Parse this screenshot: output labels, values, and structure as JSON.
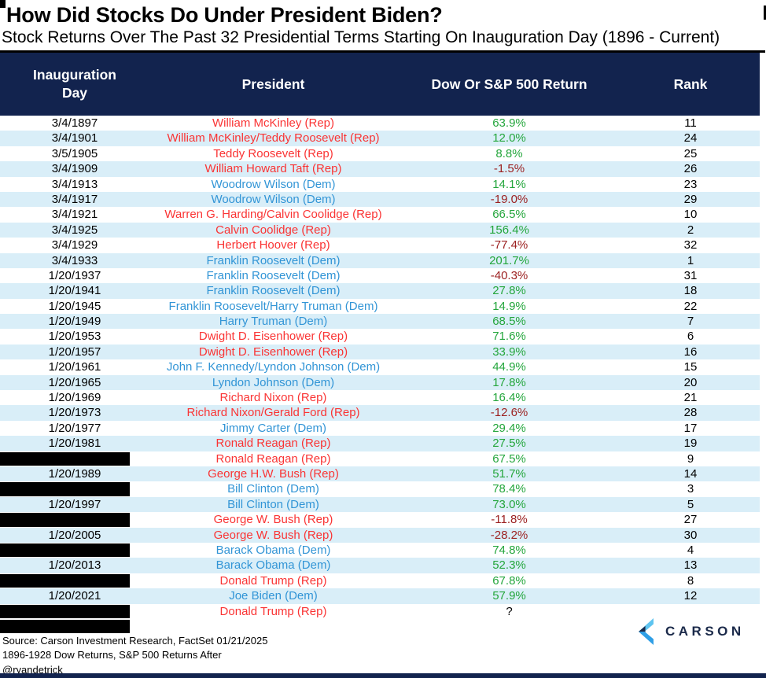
{
  "title": "How Did Stocks Do Under President Biden?",
  "subtitle": "Stock Returns Over The Past 32 Presidential Terms Starting On Inauguration Day (1896 - Current)",
  "colors": {
    "header_bg": "#12234e",
    "row_alt": "#d9eef8",
    "rep_red": "#fa3434",
    "dem_blue": "#3295d6",
    "positive_green": "#24a63c",
    "negative_red": "#9c2121",
    "logo_navy": "#1b2a4a",
    "logo_light_blue": "#5ec4f0",
    "logo_mid_blue": "#2f9fe6"
  },
  "chart_data": {
    "type": "table",
    "title": "How Did Stocks Do Under President Biden?",
    "subtitle": "Stock Returns Over The Past 32 Presidential Terms Starting On Inauguration Day (1896 - Current)",
    "columns": [
      "Inauguration\nDay",
      "President",
      "Dow Or S&P 500 Return",
      "Rank"
    ],
    "rows": [
      {
        "date": "3/4/1897",
        "redacted": false,
        "president": "William McKinley (Rep)",
        "party": "Rep",
        "return": "63.9%",
        "rank": "11"
      },
      {
        "date": "3/4/1901",
        "redacted": false,
        "president": "William McKinley/Teddy Roosevelt (Rep)",
        "party": "Rep",
        "return": "12.0%",
        "rank": "24"
      },
      {
        "date": "3/5/1905",
        "redacted": false,
        "president": "Teddy Roosevelt (Rep)",
        "party": "Rep",
        "return": "8.8%",
        "rank": "25"
      },
      {
        "date": "3/4/1909",
        "redacted": false,
        "president": "William Howard Taft (Rep)",
        "party": "Rep",
        "return": "-1.5%",
        "rank": "26"
      },
      {
        "date": "3/4/1913",
        "redacted": false,
        "president": "Woodrow Wilson (Dem)",
        "party": "Dem",
        "return": "14.1%",
        "rank": "23"
      },
      {
        "date": "3/4/1917",
        "redacted": false,
        "president": "Woodrow Wilson (Dem)",
        "party": "Dem",
        "return": "-19.0%",
        "rank": "29"
      },
      {
        "date": "3/4/1921",
        "redacted": false,
        "president": "Warren G. Harding/Calvin Coolidge (Rep)",
        "party": "Rep",
        "return": "66.5%",
        "rank": "10"
      },
      {
        "date": "3/4/1925",
        "redacted": false,
        "president": "Calvin Coolidge (Rep)",
        "party": "Rep",
        "return": "156.4%",
        "rank": "2"
      },
      {
        "date": "3/4/1929",
        "redacted": false,
        "president": "Herbert Hoover (Rep)",
        "party": "Rep",
        "return": "-77.4%",
        "rank": "32"
      },
      {
        "date": "3/4/1933",
        "redacted": false,
        "president": "Franklin Roosevelt (Dem)",
        "party": "Dem",
        "return": "201.7%",
        "rank": "1"
      },
      {
        "date": "1/20/1937",
        "redacted": false,
        "president": "Franklin Roosevelt (Dem)",
        "party": "Dem",
        "return": "-40.3%",
        "rank": "31"
      },
      {
        "date": "1/20/1941",
        "redacted": false,
        "president": "Franklin Roosevelt (Dem)",
        "party": "Dem",
        "return": "27.8%",
        "rank": "18"
      },
      {
        "date": "1/20/1945",
        "redacted": false,
        "president": "Franklin Roosevelt/Harry Truman (Dem)",
        "party": "Dem",
        "return": "14.9%",
        "rank": "22"
      },
      {
        "date": "1/20/1949",
        "redacted": false,
        "president": "Harry Truman (Dem)",
        "party": "Dem",
        "return": "68.5%",
        "rank": "7"
      },
      {
        "date": "1/20/1953",
        "redacted": false,
        "president": "Dwight D. Eisenhower (Rep)",
        "party": "Rep",
        "return": "71.6%",
        "rank": "6"
      },
      {
        "date": "1/20/1957",
        "redacted": false,
        "president": "Dwight D. Eisenhower (Rep)",
        "party": "Rep",
        "return": "33.9%",
        "rank": "16"
      },
      {
        "date": "1/20/1961",
        "redacted": false,
        "president": "John F. Kennedy/Lyndon Johnson (Dem)",
        "party": "Dem",
        "return": "44.9%",
        "rank": "15"
      },
      {
        "date": "1/20/1965",
        "redacted": false,
        "president": "Lyndon Johnson (Dem)",
        "party": "Dem",
        "return": "17.8%",
        "rank": "20"
      },
      {
        "date": "1/20/1969",
        "redacted": false,
        "president": "Richard Nixon (Rep)",
        "party": "Rep",
        "return": "16.4%",
        "rank": "21"
      },
      {
        "date": "1/20/1973",
        "redacted": false,
        "president": "Richard Nixon/Gerald Ford (Rep)",
        "party": "Rep",
        "return": "-12.6%",
        "rank": "28"
      },
      {
        "date": "1/20/1977",
        "redacted": false,
        "president": "Jimmy Carter (Dem)",
        "party": "Dem",
        "return": "29.4%",
        "rank": "17"
      },
      {
        "date": "1/20/1981",
        "redacted": false,
        "president": "Ronald Reagan (Rep)",
        "party": "Rep",
        "return": "27.5%",
        "rank": "19"
      },
      {
        "date": "",
        "redacted": true,
        "president": "Ronald Reagan (Rep)",
        "party": "Rep",
        "return": "67.5%",
        "rank": "9"
      },
      {
        "date": "1/20/1989",
        "redacted": false,
        "president": "George H.W. Bush (Rep)",
        "party": "Rep",
        "return": "51.7%",
        "rank": "14"
      },
      {
        "date": "",
        "redacted": true,
        "president": "Bill Clinton (Dem)",
        "party": "Dem",
        "return": "78.4%",
        "rank": "3"
      },
      {
        "date": "1/20/1997",
        "redacted": false,
        "president": "Bill Clinton (Dem)",
        "party": "Dem",
        "return": "73.0%",
        "rank": "5"
      },
      {
        "date": "",
        "redacted": true,
        "president": "George W. Bush (Rep)",
        "party": "Rep",
        "return": "-11.8%",
        "rank": "27"
      },
      {
        "date": "1/20/2005",
        "redacted": false,
        "president": "George W. Bush (Rep)",
        "party": "Rep",
        "return": "-28.2%",
        "rank": "30"
      },
      {
        "date": "",
        "redacted": true,
        "president": "Barack Obama (Dem)",
        "party": "Dem",
        "return": "74.8%",
        "rank": "4"
      },
      {
        "date": "1/20/2013",
        "redacted": false,
        "president": "Barack Obama (Dem)",
        "party": "Dem",
        "return": "52.3%",
        "rank": "13"
      },
      {
        "date": "",
        "redacted": true,
        "president": "Donald Trump (Rep)",
        "party": "Rep",
        "return": "67.8%",
        "rank": "8"
      },
      {
        "date": "1/20/2021",
        "redacted": false,
        "president": "Joe Biden (Dem)",
        "party": "Dem",
        "return": "57.9%",
        "rank": "12"
      },
      {
        "date": "",
        "redacted": true,
        "president": "Donald Trump (Rep)",
        "party": "Rep",
        "return": "?",
        "rank": ""
      },
      {
        "date": "",
        "redacted": true,
        "president": "",
        "party": "",
        "return": "",
        "rank": ""
      }
    ]
  },
  "footer": {
    "source": "Source: Carson Investment Research, FactSet 01/21/2025",
    "note": "1896-1928 Dow Returns, S&P 500 Returns After",
    "handle": "@ryandetrick",
    "logo_text": "CARSON"
  }
}
